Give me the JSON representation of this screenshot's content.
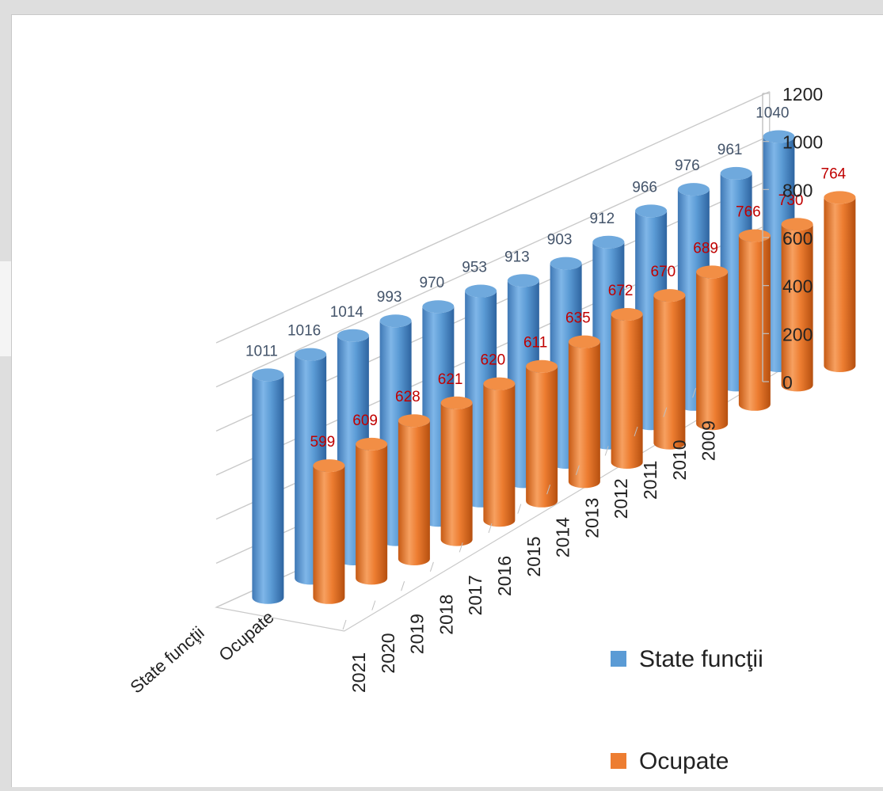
{
  "chart_data": {
    "type": "bar",
    "style": "3d-cylinder",
    "categories": [
      "2021",
      "2020",
      "2019",
      "2018",
      "2017",
      "2016",
      "2015",
      "2014",
      "2013",
      "2012",
      "2011",
      "2010",
      "2009"
    ],
    "series": [
      {
        "name": "State funcţii",
        "color": "#5b9bd5",
        "label_color": "#44546a",
        "values": [
          1011,
          1016,
          1014,
          993,
          970,
          953,
          913,
          903,
          912,
          966,
          976,
          961,
          1040
        ]
      },
      {
        "name": "Ocupate",
        "color": "#ed7d31",
        "label_color": "#c00000",
        "values": [
          599,
          609,
          628,
          621,
          620,
          611,
          635,
          672,
          670,
          689,
          766,
          730,
          764
        ]
      }
    ],
    "depth_labels": [
      "State funcţii",
      "Ocupate"
    ],
    "yticks": [
      0,
      200,
      400,
      600,
      800,
      1000,
      1200
    ],
    "ylim": [
      0,
      1200
    ],
    "grid": true,
    "legend": "right"
  }
}
